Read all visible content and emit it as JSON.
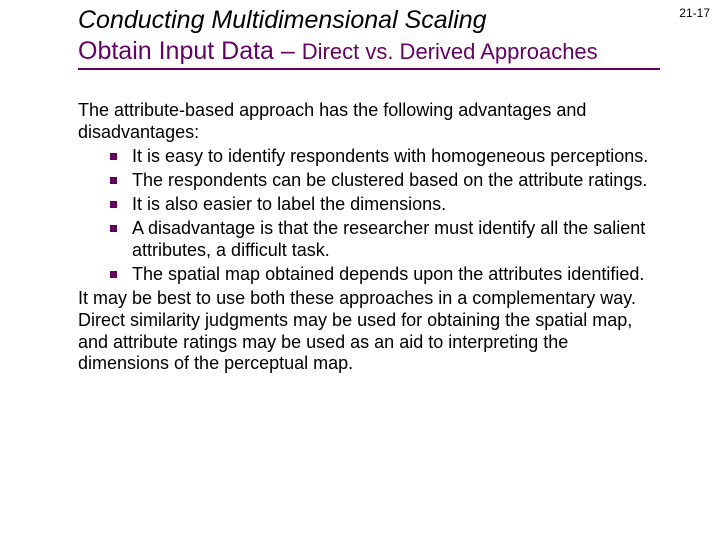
{
  "page_number": "21-17",
  "colors": {
    "accent": "#660066",
    "text": "#000000",
    "background": "#ffffff"
  },
  "typography": {
    "title_main_fontsize_pt": 25,
    "title_sub_fontsize_pt": 25,
    "title_sub_small_fontsize_pt": 22,
    "body_fontsize_pt": 18,
    "page_num_fontsize_pt": 12,
    "title_main_style": "italic"
  },
  "title": {
    "main": "Conducting Multidimensional Scaling",
    "sub_prefix": "Obtain Input Data – ",
    "sub_small": "Direct vs. Derived Approaches"
  },
  "body": {
    "intro": "The attribute-based approach has the following advantages and disadvantages:",
    "bullets": [
      "It is easy to identify respondents with homogeneous perceptions.",
      "The respondents can be clustered based on the attribute ratings.",
      "It is also easier to label the dimensions.",
      "A disadvantage is that the researcher must identify all the salient attributes, a difficult task.",
      "The spatial map obtained depends upon the attributes identified."
    ],
    "closing": "It may be best to use both these approaches in a complementary way.  Direct similarity judgments may be used for obtaining the spatial map, and attribute ratings may be used as an aid to interpreting the dimensions of the perceptual map."
  }
}
